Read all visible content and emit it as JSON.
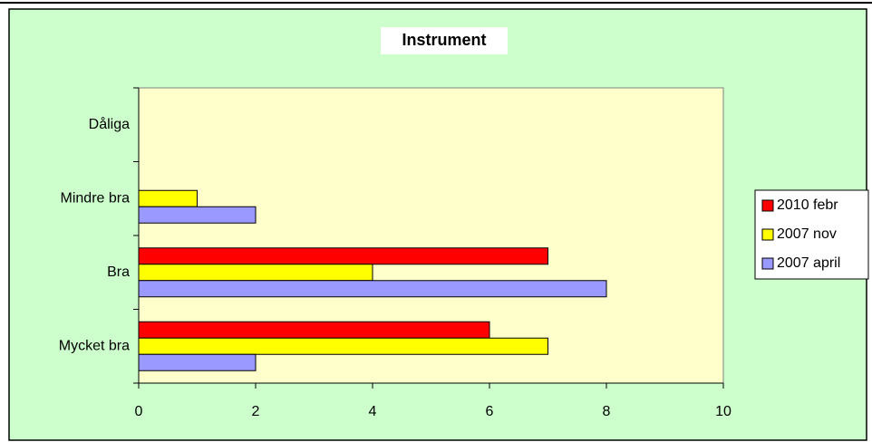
{
  "chart_data": {
    "type": "hbar",
    "title": "Instrument",
    "categories": [
      "Mycket bra",
      "Bra",
      "Mindre bra",
      "Dåliga"
    ],
    "series": [
      {
        "name": "2010 febr",
        "color": "#ff0000",
        "values": [
          6,
          7,
          0,
          0
        ]
      },
      {
        "name": "2007 nov",
        "color": "#ffff00",
        "values": [
          7,
          4,
          1,
          0
        ]
      },
      {
        "name": "2007 april",
        "color": "#9999ff",
        "values": [
          2,
          8,
          2,
          0
        ]
      }
    ],
    "xlim": [
      0,
      10
    ],
    "xticks": [
      0,
      2,
      4,
      6,
      8,
      10
    ],
    "legend": "right"
  }
}
